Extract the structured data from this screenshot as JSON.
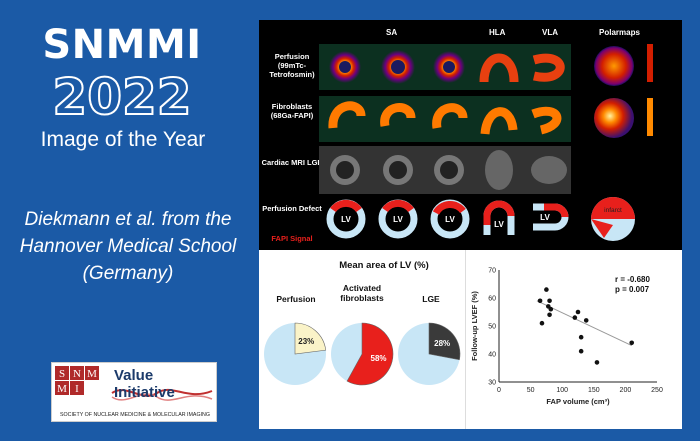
{
  "headline": {
    "line1": "SNMMI",
    "line2": "2022",
    "line3": "Image of the Year"
  },
  "credit": "Diekmann et al. from the Hannover Medical School (Germany)",
  "logo": {
    "letters": [
      "S",
      "N",
      "M",
      "M",
      "I"
    ],
    "brand_top": "Value",
    "brand_bottom": "Initiative",
    "society": "SOCIETY OF NUCLEAR MEDICINE & MOLECULAR IMAGING"
  },
  "figure": {
    "columns": {
      "sa": "SA",
      "hla": "HLA",
      "vla": "VLA",
      "polar": "Polarmaps"
    },
    "rows": {
      "perfusion": "Perfusion (99mTc-Tetrofosmin)",
      "fibroblasts": "Fibroblasts (68Ga-FAPI)",
      "mri": "Cardiac MRI LGE",
      "defect": "Perfusion Defect",
      "fapi": "FAPI Signal"
    },
    "lv_label": "LV",
    "infarct_label": "infarct",
    "colors": {
      "defect": "#e8201c",
      "fapi": "#e8201c",
      "healthy": "#c8e6f6"
    }
  },
  "pies": {
    "title": "Mean area of LV (%)",
    "items": [
      {
        "label": "Perfusion",
        "value": 23,
        "text": "23%",
        "color": "#faf3c8"
      },
      {
        "label": "Activated fibroblasts",
        "value": 58,
        "text": "58%",
        "color": "#e8201c"
      },
      {
        "label": "LGE",
        "value": 28,
        "text": "28%",
        "color": "#3a3a3a"
      }
    ],
    "base_color": "#c8e6f6"
  },
  "chart_data": {
    "type": "scatter",
    "xlabel": "FAP volume (cm³)",
    "ylabel": "Follow-up LVEF (%)",
    "xlim": [
      0,
      250
    ],
    "ylim": [
      30,
      70
    ],
    "xticks": [
      "0",
      "50",
      "100",
      "150",
      "200",
      "250"
    ],
    "yticks": [
      "30",
      "40",
      "50",
      "60",
      "70"
    ],
    "stats": {
      "r": "r = -0.680",
      "p": "p = 0.007"
    },
    "points": [
      [
        65,
        59
      ],
      [
        68,
        51
      ],
      [
        75,
        63
      ],
      [
        78,
        57
      ],
      [
        80,
        54
      ],
      [
        80,
        59
      ],
      [
        82,
        56
      ],
      [
        120,
        53
      ],
      [
        125,
        55
      ],
      [
        130,
        46
      ],
      [
        130,
        41
      ],
      [
        138,
        52
      ],
      [
        155,
        37
      ],
      [
        210,
        44
      ]
    ],
    "fit": [
      [
        60,
        59
      ],
      [
        210,
        43
      ]
    ]
  }
}
